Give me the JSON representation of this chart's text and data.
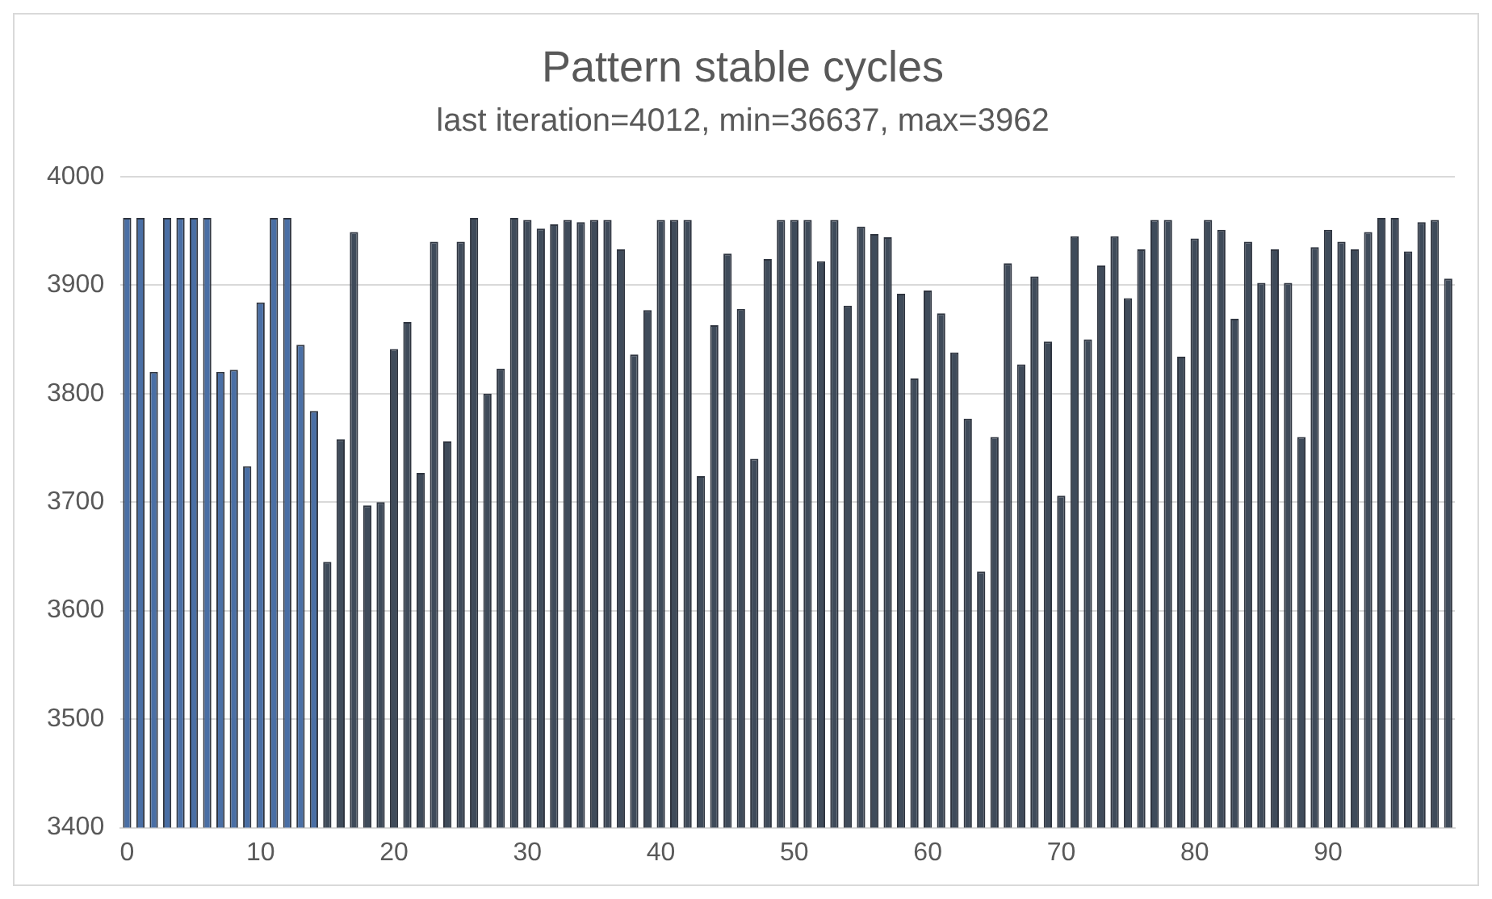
{
  "chart_data": {
    "type": "bar",
    "title": "Pattern stable cycles",
    "subtitle": "last iteration=4012, min=36637, max=3962",
    "categories": [
      "0",
      null,
      null,
      null,
      null,
      null,
      null,
      null,
      null,
      null,
      "10",
      null,
      null,
      null,
      null,
      null,
      null,
      null,
      null,
      null,
      "20",
      null,
      null,
      null,
      null,
      null,
      null,
      null,
      null,
      null,
      "30",
      null,
      null,
      null,
      null,
      null,
      null,
      null,
      null,
      null,
      "40",
      null,
      null,
      null,
      null,
      null,
      null,
      null,
      null,
      null,
      "50",
      null,
      null,
      null,
      null,
      null,
      null,
      null,
      null,
      null,
      "60",
      null,
      null,
      null,
      null,
      null,
      null,
      null,
      null,
      null,
      "70",
      null,
      null,
      null,
      null,
      null,
      null,
      null,
      null,
      null,
      "80",
      null,
      null,
      null,
      null,
      null,
      null,
      null,
      null,
      null,
      "90",
      null,
      null,
      null,
      null,
      null,
      null,
      null,
      null,
      null
    ],
    "values": [
      3962,
      3962,
      3820,
      3962,
      3962,
      3962,
      3962,
      3820,
      3822,
      3733,
      3884,
      3962,
      3962,
      3845,
      3784,
      3645,
      3758,
      3949,
      3697,
      3700,
      3841,
      3866,
      3727,
      3940,
      3756,
      3940,
      3962,
      3800,
      3823,
      3962,
      3960,
      3952,
      3956,
      3960,
      3958,
      3960,
      3960,
      3933,
      3836,
      3877,
      3960,
      3960,
      3960,
      3724,
      3863,
      3929,
      3878,
      3740,
      3924,
      3960,
      3960,
      3960,
      3922,
      3960,
      3881,
      3954,
      3947,
      3944,
      3892,
      3814,
      3895,
      3874,
      3838,
      3777,
      3636,
      3760,
      3920,
      3827,
      3908,
      3848,
      3706,
      3945,
      3850,
      3918,
      3945,
      3888,
      3933,
      3960,
      3960,
      3834,
      3943,
      3960,
      3951,
      3869,
      3940,
      3902,
      3933,
      3902,
      3760,
      3935,
      3951,
      3940,
      3933,
      3949,
      3962,
      3962,
      3931,
      3958,
      3960,
      3906
    ],
    "colors": [
      "#4a6fa5",
      "#4a6fa5",
      "#4a6fa5",
      "#4a6fa5",
      "#4a6fa5",
      "#4a6fa5",
      "#4a6fa5",
      "#4a6fa5",
      "#4a6fa5",
      "#4a6fa5",
      "#4a6fa5",
      "#4a6fa5",
      "#4a6fa5",
      "#4a6fa5",
      "#4a6fa5",
      "#3f4b5a",
      "#3f4b5a",
      "#3f4b5a",
      "#3f4b5a",
      "#3f4b5a",
      "#3f4b5a",
      "#3f4b5a",
      "#3f4b5a",
      "#3f4b5a",
      "#3f4b5a",
      "#3f4b5a",
      "#3f4b5a",
      "#3f4b5a",
      "#3f4b5a",
      "#3f4b5a",
      "#3f4b5a",
      "#3f4b5a",
      "#3f4b5a",
      "#3f4b5a",
      "#3f4b5a",
      "#3f4b5a",
      "#3f4b5a",
      "#3f4b5a",
      "#3f4b5a",
      "#3f4b5a",
      "#3f4b5a",
      "#3f4b5a",
      "#3f4b5a",
      "#3f4b5a",
      "#3f4b5a",
      "#3f4b5a",
      "#3f4b5a",
      "#3f4b5a",
      "#3f4b5a",
      "#3f4b5a",
      "#3f4b5a",
      "#3f4b5a",
      "#3f4b5a",
      "#3f4b5a",
      "#3f4b5a",
      "#3f4b5a",
      "#3f4b5a",
      "#3f4b5a",
      "#3f4b5a",
      "#3f4b5a",
      "#3f4b5a",
      "#3f4b5a",
      "#3f4b5a",
      "#3f4b5a",
      "#3f4b5a",
      "#3f4b5a",
      "#3f4b5a",
      "#3f4b5a",
      "#3f4b5a",
      "#3f4b5a",
      "#3f4b5a",
      "#3f4b5a",
      "#3f4b5a",
      "#3f4b5a",
      "#3f4b5a",
      "#3f4b5a",
      "#3f4b5a",
      "#3f4b5a",
      "#3f4b5a",
      "#3f4b5a",
      "#3f4b5a",
      "#3f4b5a",
      "#3f4b5a",
      "#3f4b5a",
      "#3f4b5a",
      "#3f4b5a",
      "#3f4b5a",
      "#3f4b5a",
      "#3f4b5a",
      "#3f4b5a",
      "#3f4b5a",
      "#3f4b5a",
      "#3f4b5a",
      "#3f4b5a",
      "#3f4b5a",
      "#3f4b5a",
      "#3f4b5a",
      "#3f4b5a",
      "#3f4b5a",
      "#3f4b5a"
    ],
    "ylim": [
      3400,
      4000
    ],
    "yticks": [
      3400,
      3500,
      3600,
      3700,
      3800,
      3900,
      4000
    ],
    "grid": "y",
    "legend": false
  }
}
